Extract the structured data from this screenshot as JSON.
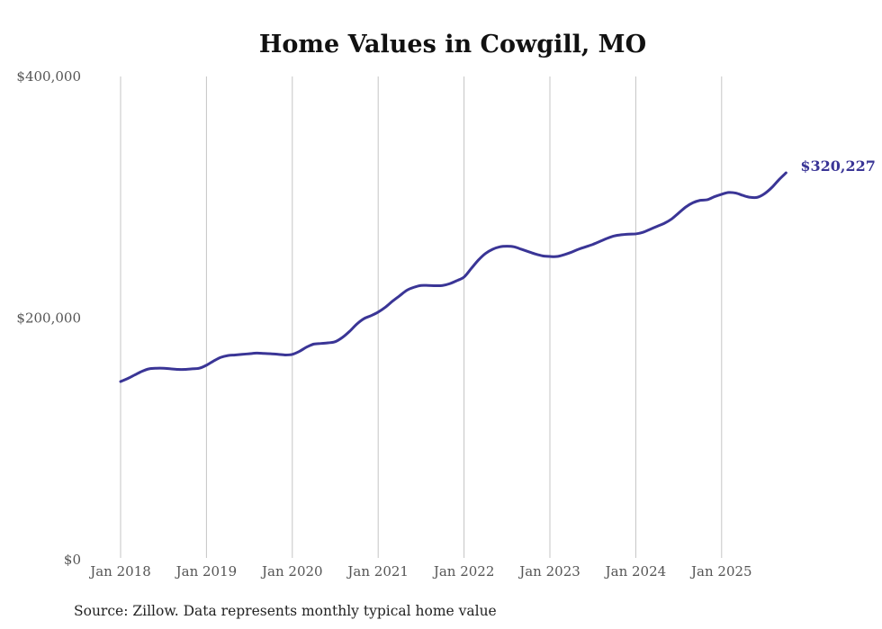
{
  "chart_data": {
    "type": "line",
    "title": "Home Values in Cowgill, MO",
    "xlabel": "",
    "ylabel": "",
    "source": "Source: Zillow. Data represents monthly typical home value",
    "start": "2018-01",
    "frequency": "monthly",
    "ylim": [
      0,
      400000
    ],
    "y_ticks": [
      0,
      200000,
      400000
    ],
    "y_tick_labels": [
      "$0",
      "$200,000",
      "$400,000"
    ],
    "x_tick_labels": [
      "Jan 2018",
      "Jan 2019",
      "Jan 2020",
      "Jan 2021",
      "Jan 2022",
      "Jan 2023",
      "Jan 2024",
      "Jan 2025"
    ],
    "grid": "vertical",
    "line_color": "#3a3596",
    "end_label": "$320,227",
    "series": [
      {
        "name": "Typical home value",
        "values": [
          147500,
          150000,
          153000,
          156000,
          158000,
          158500,
          158500,
          158000,
          157500,
          157500,
          158000,
          158500,
          161000,
          164500,
          167500,
          169000,
          169500,
          170000,
          170500,
          171000,
          170800,
          170500,
          170000,
          169500,
          170000,
          172500,
          176000,
          178500,
          179000,
          179500,
          180500,
          184000,
          189000,
          195000,
          199500,
          202000,
          205000,
          209000,
          214000,
          218500,
          223000,
          225500,
          227000,
          227000,
          226800,
          227000,
          228500,
          231000,
          234000,
          241000,
          248000,
          253500,
          257000,
          259000,
          259500,
          259000,
          257000,
          255000,
          253000,
          251500,
          251000,
          251000,
          252500,
          254500,
          257000,
          259000,
          261000,
          263500,
          266000,
          268000,
          269000,
          269500,
          269700,
          271000,
          273500,
          276000,
          278500,
          282000,
          287000,
          292000,
          295500,
          297500,
          298000,
          300500,
          302500,
          304000,
          303500,
          301500,
          300000,
          300000,
          303000,
          308000,
          314500,
          320227
        ]
      }
    ]
  }
}
